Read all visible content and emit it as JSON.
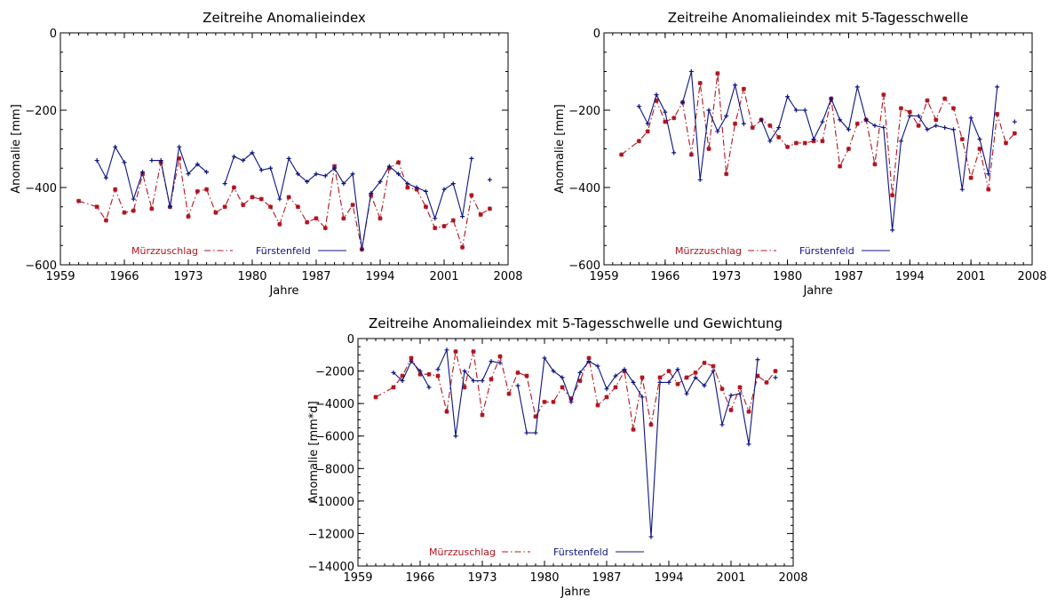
{
  "chart_data": [
    {
      "type": "line",
      "title": "Zeitreihe Anomalieindex",
      "xlabel": "Jahre",
      "ylabel": "Anomalie [mm]",
      "xlim": [
        1959,
        2008
      ],
      "ylim": [
        -600,
        0
      ],
      "xticks": [
        "1959",
        "1966",
        "1973",
        "1980",
        "1987",
        "1994",
        "2001",
        "2008"
      ],
      "yticks": [
        "0",
        "-200",
        "-400",
        "-600"
      ],
      "legend_position": "bottom-left",
      "series": [
        {
          "name": "Mürzzuschlag",
          "color": "#b0141e",
          "line_style": "dash-dot",
          "marker": "asterisk",
          "x": [
            1961,
            1963,
            1964,
            1965,
            1966,
            1967,
            1968,
            1969,
            1970,
            1971,
            1972,
            1973,
            1974,
            1975,
            1976,
            1977,
            1978,
            1979,
            1980,
            1981,
            1982,
            1983,
            1984,
            1985,
            1986,
            1987,
            1988,
            1989,
            1990,
            1991,
            1992,
            1993,
            1994,
            1995,
            1996,
            1997,
            1998,
            1999,
            2000,
            2001,
            2002,
            2003,
            2004,
            2005,
            2006
          ],
          "y": [
            -435,
            -450,
            -485,
            -405,
            -465,
            -460,
            -365,
            -455,
            -335,
            -450,
            -325,
            -475,
            -410,
            -405,
            -465,
            -450,
            -400,
            -445,
            -425,
            -430,
            -450,
            -495,
            -425,
            -450,
            -490,
            -480,
            -505,
            -345,
            -480,
            -445,
            -560,
            -420,
            -480,
            -350,
            -335,
            -400,
            -405,
            -450,
            -505,
            -500,
            -485,
            -555,
            -420,
            -470,
            -455
          ]
        },
        {
          "name": "Fürstenfeld",
          "color": "#0c1480",
          "line_style": "solid",
          "marker": "plus",
          "segments": [
            {
              "x": [
                1963,
                1964,
                1965,
                1966,
                1967,
                1968
              ],
              "y": [
                -330,
                -375,
                -295,
                -335,
                -430,
                -360
              ]
            },
            {
              "x": [
                1969,
                1970,
                1971,
                1972,
                1973,
                1974,
                1975
              ],
              "y": [
                -330,
                -330,
                -450,
                -295,
                -365,
                -340,
                -360
              ]
            },
            {
              "x": [
                1977,
                1978,
                1979,
                1980,
                1981,
                1982,
                1983,
                1984,
                1985,
                1986,
                1987,
                1988,
                1989,
                1990,
                1991,
                1992,
                1993,
                1994,
                1995,
                1996,
                1997,
                1998,
                1999,
                2000,
                2001,
                2002,
                2003,
                2004
              ],
              "y": [
                -390,
                -320,
                -330,
                -310,
                -355,
                -350,
                -430,
                -325,
                -365,
                -385,
                -365,
                -370,
                -350,
                -390,
                -365,
                -560,
                -415,
                -385,
                -345,
                -365,
                -390,
                -400,
                -410,
                -480,
                -405,
                -390,
                -475,
                -325
              ]
            },
            {
              "x": [
                2006
              ],
              "y": [
                -380
              ]
            }
          ]
        }
      ]
    },
    {
      "type": "line",
      "title": "Zeitreihe Anomalieindex mit 5-Tagesschwelle",
      "xlabel": "Jahre",
      "ylabel": "Anomalie [mm]",
      "xlim": [
        1959,
        2008
      ],
      "ylim": [
        -600,
        0
      ],
      "xticks": [
        "1959",
        "1966",
        "1973",
        "1980",
        "1987",
        "1994",
        "2001",
        "2008"
      ],
      "yticks": [
        "0",
        "-200",
        "-400",
        "-600"
      ],
      "legend_position": "bottom-left",
      "series": [
        {
          "name": "Mürzzuschlag",
          "color": "#b0141e",
          "line_style": "dash-dot",
          "marker": "asterisk",
          "x": [
            1961,
            1963,
            1964,
            1965,
            1966,
            1967,
            1968,
            1969,
            1970,
            1971,
            1972,
            1973,
            1974,
            1975,
            1976,
            1977,
            1978,
            1979,
            1980,
            1981,
            1982,
            1983,
            1984,
            1985,
            1986,
            1987,
            1988,
            1989,
            1990,
            1991,
            1992,
            1993,
            1994,
            1995,
            1996,
            1997,
            1998,
            1999,
            2000,
            2001,
            2002,
            2003,
            2004,
            2005,
            2006
          ],
          "y": [
            -315,
            -280,
            -255,
            -175,
            -230,
            -220,
            -180,
            -315,
            -130,
            -300,
            -105,
            -365,
            -235,
            -145,
            -245,
            -225,
            -240,
            -270,
            -295,
            -285,
            -285,
            -280,
            -280,
            -170,
            -345,
            -300,
            -235,
            -225,
            -340,
            -160,
            -420,
            -195,
            -205,
            -240,
            -175,
            -225,
            -170,
            -195,
            -275,
            -375,
            -300,
            -405,
            -210,
            -285,
            -260
          ]
        },
        {
          "name": "Fürstenfeld",
          "color": "#0c1480",
          "line_style": "solid",
          "marker": "plus",
          "segments": [
            {
              "x": [
                1963,
                1964,
                1965,
                1966,
                1967
              ],
              "y": [
                -190,
                -235,
                -160,
                -205,
                -310
              ]
            },
            {
              "x": [
                1968,
                1969,
                1970,
                1971,
                1972,
                1973,
                1974,
                1975
              ],
              "y": [
                -180,
                -100,
                -380,
                -200,
                -255,
                -215,
                -135,
                -235
              ]
            },
            {
              "x": [
                1977,
                1978,
                1979,
                1980,
                1981,
                1982,
                1983,
                1984,
                1985,
                1986,
                1987,
                1988,
                1989,
                1990,
                1991,
                1992,
                1993,
                1994,
                1995,
                1996,
                1997,
                1998,
                1999,
                2000,
                2001,
                2002,
                2003,
                2004
              ],
              "y": [
                -225,
                -280,
                -245,
                -165,
                -200,
                -200,
                -275,
                -230,
                -170,
                -225,
                -250,
                -140,
                -225,
                -240,
                -245,
                -510,
                -280,
                -215,
                -215,
                -250,
                -240,
                -245,
                -250,
                -405,
                -220,
                -275,
                -365,
                -140
              ]
            },
            {
              "x": [
                2006
              ],
              "y": [
                -230
              ]
            }
          ]
        }
      ]
    },
    {
      "type": "line",
      "title": "Zeitreihe Anomalieindex mit 5-Tagesschwelle und Gewichtung",
      "xlabel": "Jahre",
      "ylabel": "Anomalie [mm*d]",
      "xlim": [
        1959,
        2008
      ],
      "ylim": [
        -14000,
        0
      ],
      "xticks": [
        "1959",
        "1966",
        "1973",
        "1980",
        "1987",
        "1994",
        "2001",
        "2008"
      ],
      "yticks": [
        "0",
        "-2000",
        "-4000",
        "-6000",
        "-8000",
        "-10000",
        "-12000",
        "-14000"
      ],
      "legend_position": "bottom-left",
      "series": [
        {
          "name": "Mürzzuschlag",
          "color": "#b0141e",
          "line_style": "dash-dot",
          "marker": "asterisk",
          "x": [
            1961,
            1963,
            1964,
            1965,
            1966,
            1967,
            1968,
            1969,
            1970,
            1971,
            1972,
            1973,
            1974,
            1975,
            1976,
            1977,
            1978,
            1979,
            1980,
            1981,
            1982,
            1983,
            1984,
            1985,
            1986,
            1987,
            1988,
            1989,
            1990,
            1991,
            1992,
            1993,
            1994,
            1995,
            1996,
            1997,
            1998,
            1999,
            2000,
            2001,
            2002,
            2003,
            2004,
            2005,
            2006
          ],
          "y": [
            -3600,
            -3000,
            -2300,
            -1200,
            -2200,
            -2200,
            -2300,
            -4500,
            -800,
            -3000,
            -800,
            -4700,
            -2500,
            -1100,
            -3400,
            -2100,
            -2300,
            -4800,
            -3900,
            -3900,
            -3000,
            -3700,
            -2600,
            -1200,
            -4100,
            -3600,
            -3000,
            -2000,
            -5600,
            -2400,
            -5300,
            -2400,
            -2000,
            -2800,
            -2400,
            -2100,
            -1500,
            -1700,
            -3100,
            -4400,
            -3000,
            -4500,
            -2300,
            -2700,
            -2000
          ]
        },
        {
          "name": "Fürstenfeld",
          "color": "#0c1480",
          "line_style": "solid",
          "marker": "plus",
          "segments": [
            {
              "x": [
                1963,
                1964,
                1965,
                1966,
                1967
              ],
              "y": [
                -2100,
                -2600,
                -1400,
                -2000,
                -3000
              ]
            },
            {
              "x": [
                1968,
                1969,
                1970,
                1971,
                1972,
                1973,
                1974,
                1975
              ],
              "y": [
                -1900,
                -700,
                -6000,
                -2000,
                -2600,
                -2600,
                -1400,
                -1500
              ]
            },
            {
              "x": [
                1977,
                1978,
                1979,
                1980,
                1981,
                1982,
                1983,
                1984,
                1985,
                1986,
                1987,
                1988,
                1989,
                1990,
                1991,
                1992,
                1993,
                1994,
                1995,
                1996,
                1997,
                1998,
                1999,
                2000,
                2001,
                2002,
                2003,
                2004
              ],
              "y": [
                -2900,
                -5800,
                -5800,
                -1200,
                -2000,
                -2400,
                -3900,
                -2100,
                -1400,
                -1700,
                -3100,
                -2300,
                -1900,
                -2700,
                -3600,
                -12200,
                -2700,
                -2700,
                -1900,
                -3400,
                -2400,
                -2900,
                -2000,
                -5300,
                -3500,
                -3400,
                -6500,
                -1300
              ]
            },
            {
              "x": [
                2006
              ],
              "y": [
                -2400
              ]
            }
          ]
        }
      ]
    }
  ]
}
